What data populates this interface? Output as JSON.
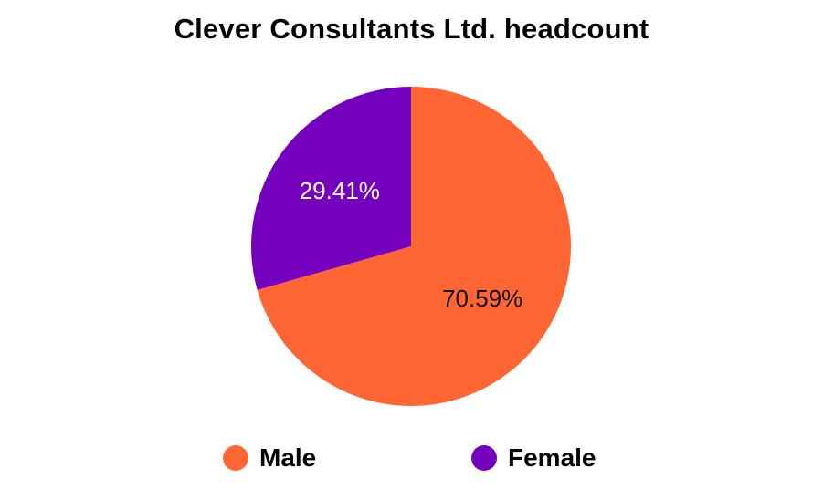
{
  "chart_data": {
    "type": "pie",
    "title": "Clever Consultants Ltd. headcount",
    "slices": [
      {
        "name": "Male",
        "value": 70.59,
        "label": "70.59%",
        "color": "#FF6633",
        "label_color": "#111111"
      },
      {
        "name": "Female",
        "value": 29.41,
        "label": "29.41%",
        "color": "#7500BD",
        "label_color": "#FFFFFF"
      }
    ],
    "legend_position": "bottom"
  }
}
